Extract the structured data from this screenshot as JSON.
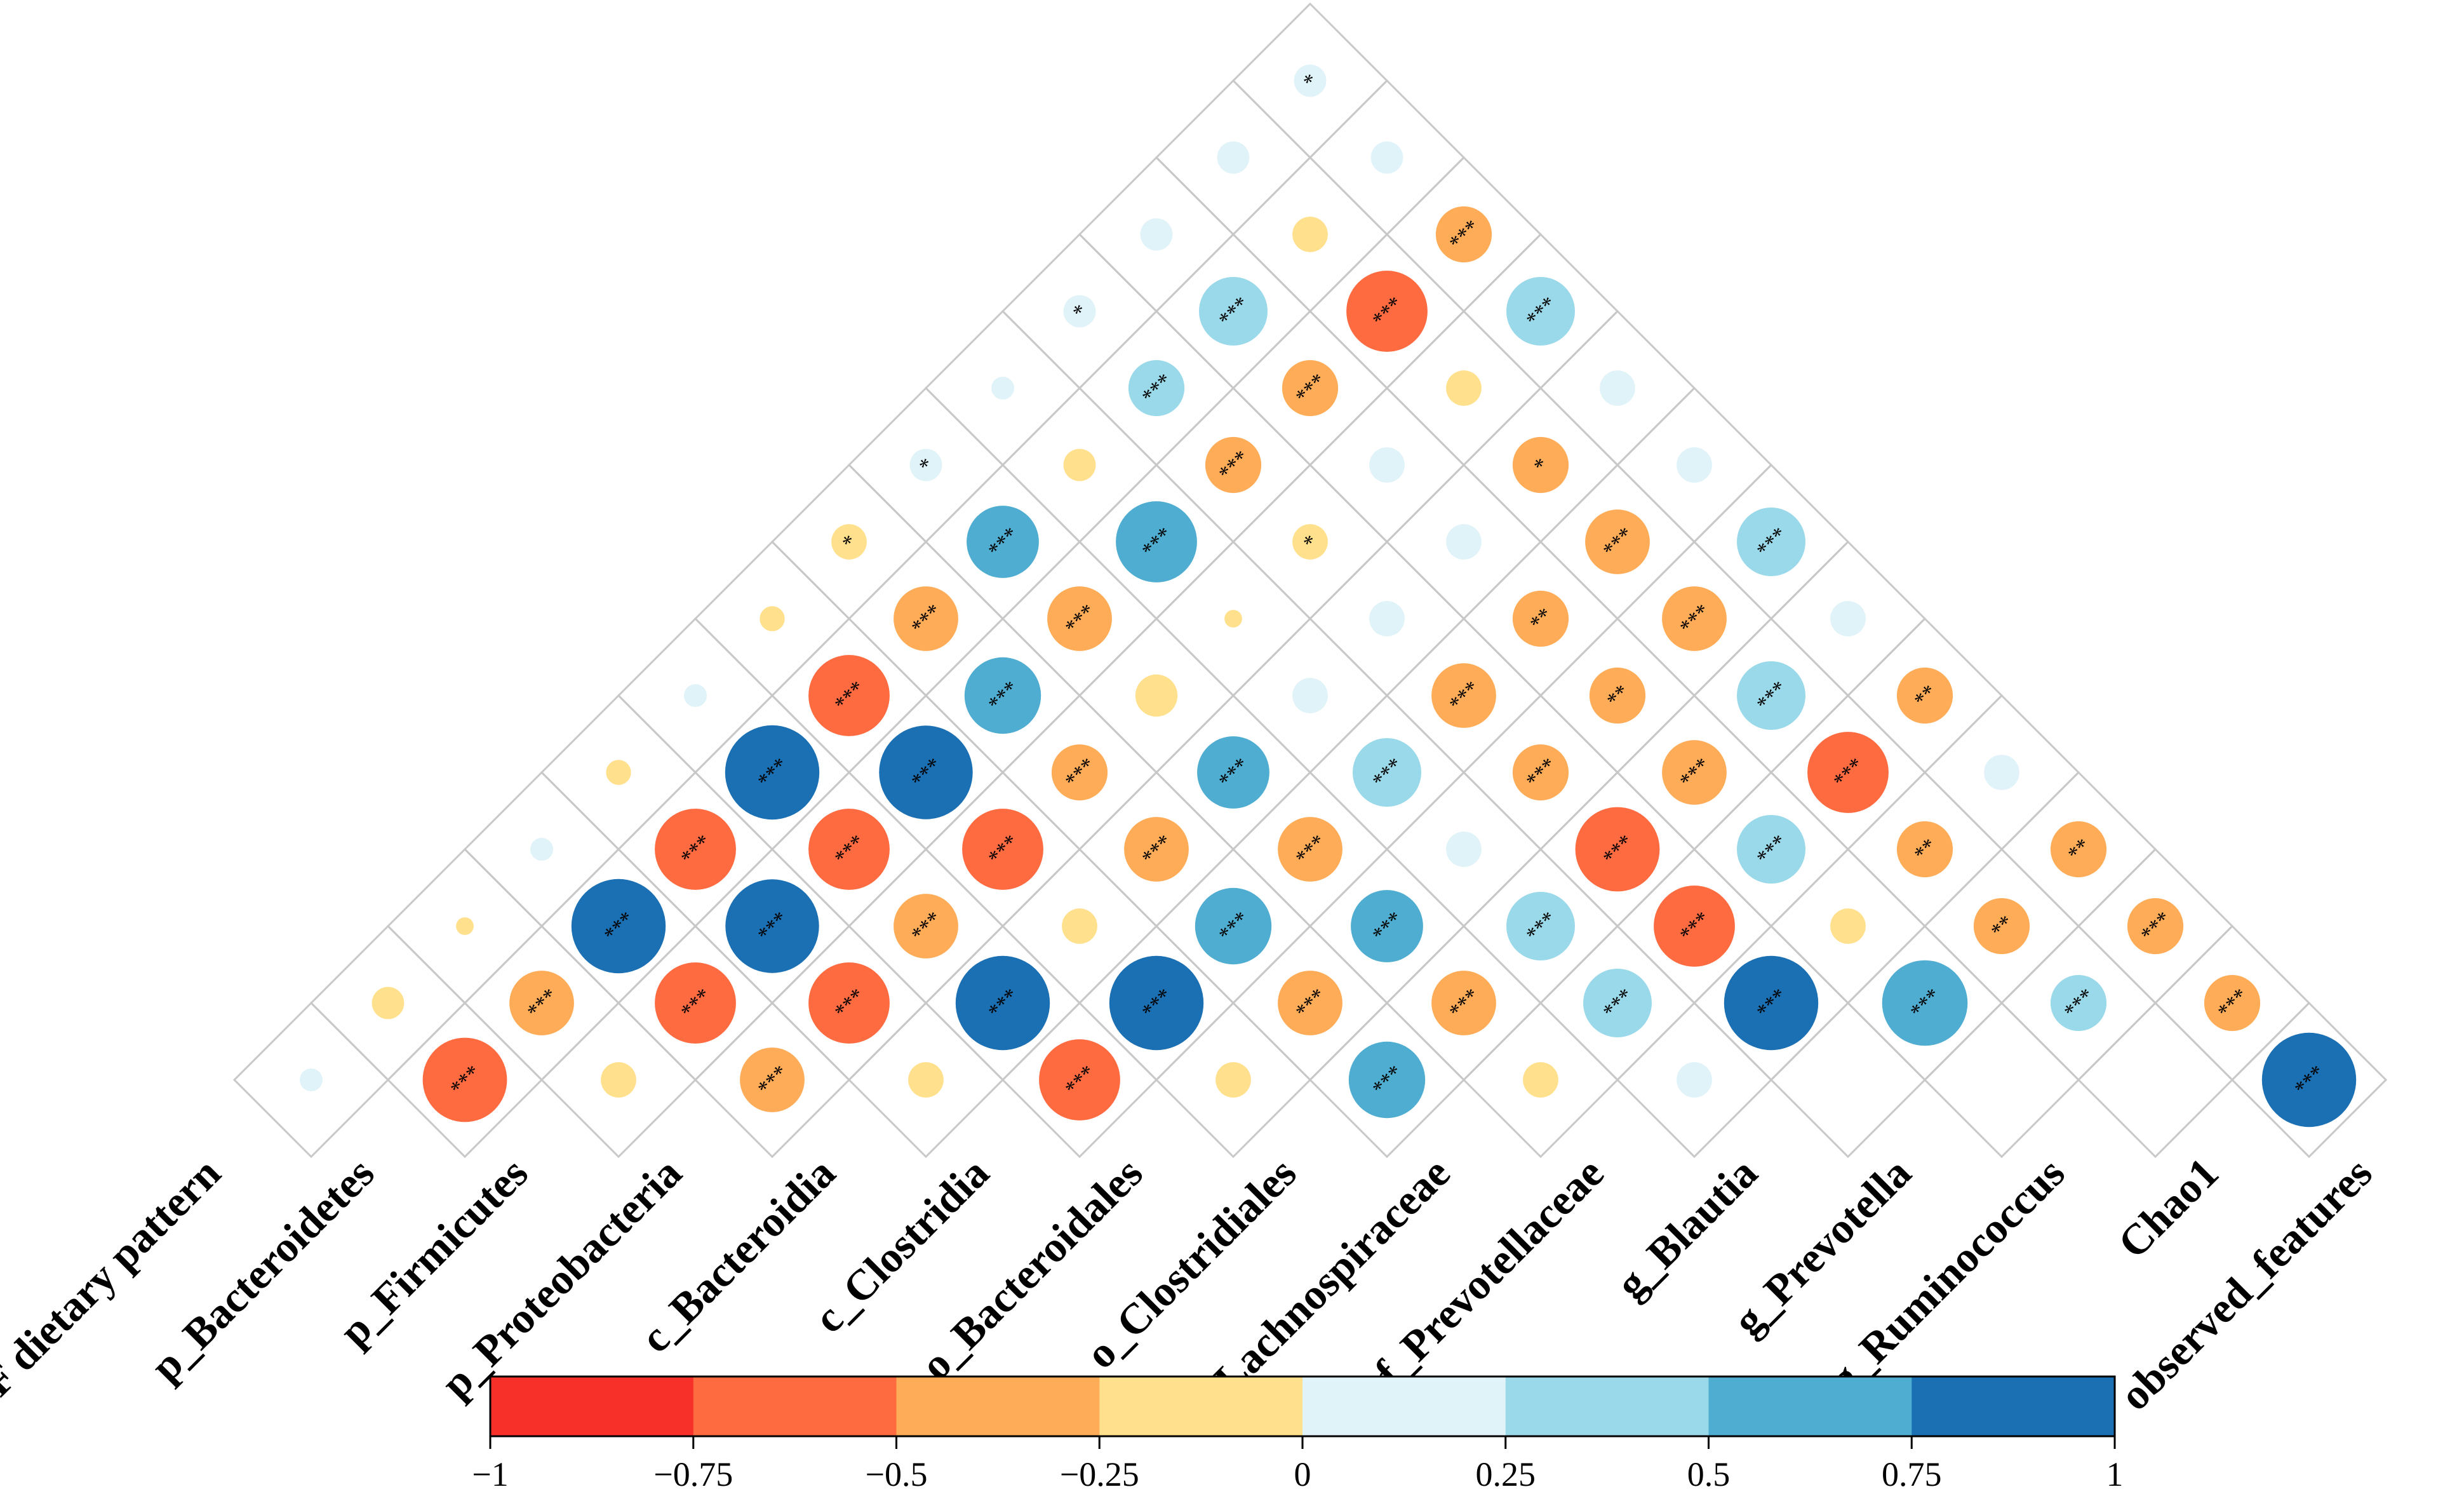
{
  "chart_data": {
    "type": "heatmap",
    "title": "",
    "variables": [
      "VF dietary pattern",
      "p_Bacteroidetes",
      "p_Firmicutes",
      "p_Proteobacteria",
      "c_Bacteroidia",
      "c_Clostridia",
      "o_Bacteroidales",
      "o_Clostridiales",
      "f_Lachnospiraceae",
      "f_Prevotellaceae",
      "g_Blautia",
      "g_Prevotella",
      "g_Ruminococcus",
      "Chao1",
      "observed_features"
    ],
    "pairs": [
      {
        "a": "p_Bacteroidetes",
        "b": "VF dietary pattern",
        "r": 0.05,
        "sig": ""
      },
      {
        "a": "p_Firmicutes",
        "b": "VF dietary pattern",
        "r": -0.1,
        "sig": ""
      },
      {
        "a": "p_Firmicutes",
        "b": "p_Bacteroidetes",
        "r": -0.68,
        "sig": "***"
      },
      {
        "a": "p_Proteobacteria",
        "b": "VF dietary pattern",
        "r": -0.03,
        "sig": ""
      },
      {
        "a": "p_Proteobacteria",
        "b": "p_Bacteroidetes",
        "r": -0.4,
        "sig": "***"
      },
      {
        "a": "p_Proteobacteria",
        "b": "p_Firmicutes",
        "r": -0.12,
        "sig": ""
      },
      {
        "a": "c_Bacteroidia",
        "b": "VF dietary pattern",
        "r": 0.05,
        "sig": ""
      },
      {
        "a": "c_Bacteroidia",
        "b": "p_Bacteroidetes",
        "r": 0.85,
        "sig": "***"
      },
      {
        "a": "c_Bacteroidia",
        "b": "p_Firmicutes",
        "r": -0.63,
        "sig": "***"
      },
      {
        "a": "c_Bacteroidia",
        "b": "p_Proteobacteria",
        "r": -0.4,
        "sig": "***"
      },
      {
        "a": "c_Clostridia",
        "b": "VF dietary pattern",
        "r": -0.06,
        "sig": ""
      },
      {
        "a": "c_Clostridia",
        "b": "p_Bacteroidetes",
        "r": -0.63,
        "sig": "***"
      },
      {
        "a": "c_Clostridia",
        "b": "p_Firmicutes",
        "r": 0.84,
        "sig": "***"
      },
      {
        "a": "c_Clostridia",
        "b": "p_Proteobacteria",
        "r": -0.63,
        "sig": "***"
      },
      {
        "a": "c_Clostridia",
        "b": "c_Bacteroidia",
        "r": -0.12,
        "sig": ""
      },
      {
        "a": "o_Bacteroidales",
        "b": "VF dietary pattern",
        "r": 0.05,
        "sig": ""
      },
      {
        "a": "o_Bacteroidales",
        "b": "p_Bacteroidetes",
        "r": 0.85,
        "sig": "***"
      },
      {
        "a": "o_Bacteroidales",
        "b": "p_Firmicutes",
        "r": -0.63,
        "sig": "***"
      },
      {
        "a": "o_Bacteroidales",
        "b": "p_Proteobacteria",
        "r": -0.4,
        "sig": "***"
      },
      {
        "a": "o_Bacteroidales",
        "b": "c_Bacteroidia",
        "r": 0.85,
        "sig": "***"
      },
      {
        "a": "o_Bacteroidales",
        "b": "c_Clostridia",
        "r": -0.63,
        "sig": "***"
      },
      {
        "a": "o_Clostridiales",
        "b": "VF dietary pattern",
        "r": -0.06,
        "sig": ""
      },
      {
        "a": "o_Clostridiales",
        "b": "p_Bacteroidetes",
        "r": -0.63,
        "sig": "***"
      },
      {
        "a": "o_Clostridiales",
        "b": "p_Firmicutes",
        "r": 0.84,
        "sig": "***"
      },
      {
        "a": "o_Clostridiales",
        "b": "p_Proteobacteria",
        "r": -0.63,
        "sig": "***"
      },
      {
        "a": "o_Clostridiales",
        "b": "c_Bacteroidia",
        "r": -0.12,
        "sig": ""
      },
      {
        "a": "o_Clostridiales",
        "b": "c_Clostridia",
        "r": 0.85,
        "sig": "***"
      },
      {
        "a": "o_Clostridiales",
        "b": "o_Bacteroidales",
        "r": -0.12,
        "sig": ""
      },
      {
        "a": "f_Lachnospiraceae",
        "b": "VF dietary pattern",
        "r": -0.12,
        "sig": "*"
      },
      {
        "a": "f_Lachnospiraceae",
        "b": "p_Bacteroidetes",
        "r": -0.4,
        "sig": "***"
      },
      {
        "a": "f_Lachnospiraceae",
        "b": "p_Firmicutes",
        "r": 0.56,
        "sig": "***"
      },
      {
        "a": "f_Lachnospiraceae",
        "b": "p_Proteobacteria",
        "r": -0.3,
        "sig": "***"
      },
      {
        "a": "f_Lachnospiraceae",
        "b": "c_Bacteroidia",
        "r": -0.4,
        "sig": "***"
      },
      {
        "a": "f_Lachnospiraceae",
        "b": "c_Clostridia",
        "r": 0.56,
        "sig": "***"
      },
      {
        "a": "f_Lachnospiraceae",
        "b": "o_Bacteroidales",
        "r": -0.4,
        "sig": "***"
      },
      {
        "a": "f_Lachnospiraceae",
        "b": "o_Clostridiales",
        "r": 0.56,
        "sig": "***"
      },
      {
        "a": "f_Prevotellaceae",
        "b": "VF dietary pattern",
        "r": 0.1,
        "sig": "*"
      },
      {
        "a": "f_Prevotellaceae",
        "b": "p_Bacteroidetes",
        "r": 0.5,
        "sig": "***"
      },
      {
        "a": "f_Prevotellaceae",
        "b": "p_Firmicutes",
        "r": -0.4,
        "sig": "***"
      },
      {
        "a": "f_Prevotellaceae",
        "b": "p_Proteobacteria",
        "r": -0.17,
        "sig": ""
      },
      {
        "a": "f_Prevotellaceae",
        "b": "c_Bacteroidia",
        "r": 0.5,
        "sig": "***"
      },
      {
        "a": "f_Prevotellaceae",
        "b": "c_Clostridia",
        "r": -0.4,
        "sig": "***"
      },
      {
        "a": "f_Prevotellaceae",
        "b": "o_Bacteroidales",
        "r": 0.5,
        "sig": "***"
      },
      {
        "a": "f_Prevotellaceae",
        "b": "o_Clostridiales",
        "r": -0.4,
        "sig": "***"
      },
      {
        "a": "f_Prevotellaceae",
        "b": "f_Lachnospiraceae",
        "r": -0.12,
        "sig": ""
      },
      {
        "a": "g_Blautia",
        "b": "VF dietary pattern",
        "r": 0.05,
        "sig": ""
      },
      {
        "a": "g_Blautia",
        "b": "p_Bacteroidetes",
        "r": -0.1,
        "sig": ""
      },
      {
        "a": "g_Blautia",
        "b": "p_Firmicutes",
        "r": 0.63,
        "sig": "***"
      },
      {
        "a": "g_Blautia",
        "b": "p_Proteobacteria",
        "r": -0.03,
        "sig": ""
      },
      {
        "a": "g_Blautia",
        "b": "c_Bacteroidia",
        "r": 0.12,
        "sig": ""
      },
      {
        "a": "g_Blautia",
        "b": "c_Clostridia",
        "r": 0.45,
        "sig": "***"
      },
      {
        "a": "g_Blautia",
        "b": "o_Bacteroidales",
        "r": 0.12,
        "sig": ""
      },
      {
        "a": "g_Blautia",
        "b": "o_Clostridiales",
        "r": 0.45,
        "sig": "***"
      },
      {
        "a": "g_Blautia",
        "b": "f_Lachnospiraceae",
        "r": 0.45,
        "sig": "***"
      },
      {
        "a": "g_Blautia",
        "b": "f_Prevotellaceae",
        "r": 0.12,
        "sig": ""
      },
      {
        "a": "g_Prevotella",
        "b": "VF dietary pattern",
        "r": 0.1,
        "sig": "*"
      },
      {
        "a": "g_Prevotella",
        "b": "p_Bacteroidetes",
        "r": 0.3,
        "sig": "***"
      },
      {
        "a": "g_Prevotella",
        "b": "p_Firmicutes",
        "r": -0.3,
        "sig": "***"
      },
      {
        "a": "g_Prevotella",
        "b": "p_Proteobacteria",
        "r": -0.12,
        "sig": "*"
      },
      {
        "a": "g_Prevotella",
        "b": "c_Bacteroidia",
        "r": 0.12,
        "sig": ""
      },
      {
        "a": "g_Prevotella",
        "b": "c_Clostridia",
        "r": -0.4,
        "sig": "***"
      },
      {
        "a": "g_Prevotella",
        "b": "o_Bacteroidales",
        "r": -0.3,
        "sig": "***"
      },
      {
        "a": "g_Prevotella",
        "b": "o_Clostridiales",
        "r": -0.68,
        "sig": "***"
      },
      {
        "a": "g_Prevotella",
        "b": "f_Lachnospiraceae",
        "r": -0.63,
        "sig": "***"
      },
      {
        "a": "g_Prevotella",
        "b": "f_Prevotellaceae",
        "r": 0.85,
        "sig": "***"
      },
      {
        "a": "g_Ruminococcus",
        "b": "VF dietary pattern",
        "r": 0.1,
        "sig": ""
      },
      {
        "a": "g_Ruminococcus",
        "b": "p_Bacteroidetes",
        "r": 0.45,
        "sig": "***"
      },
      {
        "a": "g_Ruminococcus",
        "b": "p_Firmicutes",
        "r": -0.3,
        "sig": "***"
      },
      {
        "a": "g_Ruminococcus",
        "b": "p_Proteobacteria",
        "r": 0.12,
        "sig": ""
      },
      {
        "a": "g_Ruminococcus",
        "b": "c_Bacteroidia",
        "r": 0.12,
        "sig": ""
      },
      {
        "a": "g_Ruminococcus",
        "b": "c_Clostridia",
        "r": -0.3,
        "sig": "**"
      },
      {
        "a": "g_Ruminococcus",
        "b": "o_Bacteroidales",
        "r": -0.3,
        "sig": "**"
      },
      {
        "a": "g_Ruminococcus",
        "b": "o_Clostridiales",
        "r": -0.4,
        "sig": "***"
      },
      {
        "a": "g_Ruminococcus",
        "b": "f_Lachnospiraceae",
        "r": 0.45,
        "sig": "***"
      },
      {
        "a": "g_Ruminococcus",
        "b": "f_Prevotellaceae",
        "r": -0.12,
        "sig": ""
      },
      {
        "a": "g_Ruminococcus",
        "b": "g_Blautia",
        "r": 0.7,
        "sig": "***"
      },
      {
        "a": "Chao1",
        "b": "VF dietary pattern",
        "r": 0.1,
        "sig": ""
      },
      {
        "a": "Chao1",
        "b": "p_Bacteroidetes",
        "r": -0.12,
        "sig": ""
      },
      {
        "a": "Chao1",
        "b": "p_Firmicutes",
        "r": -0.63,
        "sig": "***"
      },
      {
        "a": "Chao1",
        "b": "p_Proteobacteria",
        "r": -0.12,
        "sig": ""
      },
      {
        "a": "Chao1",
        "b": "c_Bacteroidia",
        "r": -0.3,
        "sig": "*"
      },
      {
        "a": "Chao1",
        "b": "c_Clostridia",
        "r": -0.4,
        "sig": "***"
      },
      {
        "a": "Chao1",
        "b": "o_Bacteroidales",
        "r": -0.4,
        "sig": "***"
      },
      {
        "a": "Chao1",
        "b": "o_Clostridiales",
        "r": 0.45,
        "sig": "***"
      },
      {
        "a": "Chao1",
        "b": "f_Lachnospiraceae",
        "r": -0.63,
        "sig": "***"
      },
      {
        "a": "Chao1",
        "b": "f_Prevotellaceae",
        "r": -0.3,
        "sig": "**"
      },
      {
        "a": "Chao1",
        "b": "g_Blautia",
        "r": -0.3,
        "sig": "**"
      },
      {
        "a": "Chao1",
        "b": "g_Prevotella",
        "r": 0.3,
        "sig": "***"
      },
      {
        "a": "observed_features",
        "b": "VF dietary pattern",
        "r": 0.1,
        "sig": "*"
      },
      {
        "a": "observed_features",
        "b": "p_Bacteroidetes",
        "r": 0.1,
        "sig": ""
      },
      {
        "a": "observed_features",
        "b": "p_Firmicutes",
        "r": -0.3,
        "sig": "***"
      },
      {
        "a": "observed_features",
        "b": "p_Proteobacteria",
        "r": 0.45,
        "sig": "***"
      },
      {
        "a": "observed_features",
        "b": "c_Bacteroidia",
        "r": 0.12,
        "sig": ""
      },
      {
        "a": "observed_features",
        "b": "c_Clostridia",
        "r": 0.12,
        "sig": ""
      },
      {
        "a": "observed_features",
        "b": "o_Bacteroidales",
        "r": 0.45,
        "sig": "***"
      },
      {
        "a": "observed_features",
        "b": "o_Clostridiales",
        "r": 0.12,
        "sig": ""
      },
      {
        "a": "observed_features",
        "b": "f_Lachnospiraceae",
        "r": -0.3,
        "sig": "**"
      },
      {
        "a": "observed_features",
        "b": "f_Prevotellaceae",
        "r": 0.12,
        "sig": ""
      },
      {
        "a": "observed_features",
        "b": "g_Blautia",
        "r": -0.3,
        "sig": "**"
      },
      {
        "a": "observed_features",
        "b": "g_Prevotella",
        "r": -0.3,
        "sig": "***"
      },
      {
        "a": "observed_features",
        "b": "g_Ruminococcus",
        "r": -0.3,
        "sig": "***"
      },
      {
        "a": "observed_features",
        "b": "Chao1",
        "r": 0.85,
        "sig": "***"
      }
    ],
    "colorbar": {
      "range": [
        -1,
        1
      ],
      "ticks": [
        "−1",
        "−0.75",
        "−0.5",
        "−0.25",
        "0",
        "0.25",
        "0.5",
        "0.75",
        "1"
      ],
      "bins": [
        "#f8302a",
        "#fe6b40",
        "#feac58",
        "#ffe08d",
        "#e0f3f8",
        "#9ad9e9",
        "#4fadd1",
        "#1b6fb3"
      ]
    },
    "grid": true,
    "legend": "bottom"
  }
}
